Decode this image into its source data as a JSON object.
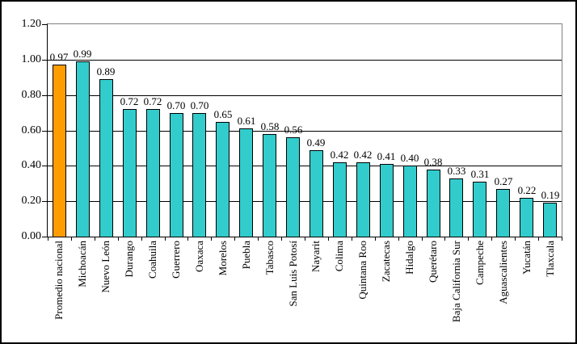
{
  "chart_data": {
    "type": "bar",
    "categories": [
      "Promedio nacional",
      "Michoacán",
      "Nuevo León",
      "Durango",
      "Coahuila",
      "Guerrero",
      "Oaxaca",
      "Morelos",
      "Puebla",
      "Tabasco",
      "San Luis Potosí",
      "Nayarit",
      "Colima",
      "Quintana Roo",
      "Zacatecas",
      "Hidalgo",
      "Querétaro",
      "Baja California Sur",
      "Campeche",
      "Aguascalientes",
      "Yucatán",
      "Tlaxcala"
    ],
    "values": [
      0.97,
      0.99,
      0.89,
      0.72,
      0.72,
      0.7,
      0.7,
      0.65,
      0.61,
      0.58,
      0.56,
      0.49,
      0.42,
      0.42,
      0.41,
      0.4,
      0.38,
      0.33,
      0.31,
      0.27,
      0.22,
      0.19
    ],
    "data_labels": [
      "0.97",
      "0.99",
      "0.89",
      "0.72",
      "0.72",
      "0.70",
      "0.70",
      "0.65",
      "0.61",
      "0.58",
      "0.56",
      "0.49",
      "0.42",
      "0.42",
      "0.41",
      "0.40",
      "0.38",
      "0.33",
      "0.31",
      "0.27",
      "0.22",
      "0.19"
    ],
    "ylim": [
      0,
      1.2
    ],
    "yticks": [
      1.2,
      1.0,
      0.8,
      0.6,
      0.4,
      0.2,
      0.0
    ],
    "ytick_labels": [
      "1.20",
      "1.00",
      "0.80",
      "0.60",
      "0.40",
      "0.20",
      "0.00"
    ],
    "grid": true,
    "legend_position": "none",
    "highlight_index": 0
  },
  "colors": {
    "bar": "#33CCCC",
    "highlight": "#FF9C00",
    "bar_border": "#000000",
    "gridline": "#000000",
    "plot_border": "#808080",
    "axis": "#000000",
    "background": "#FFFFFF",
    "text": "#000000"
  }
}
